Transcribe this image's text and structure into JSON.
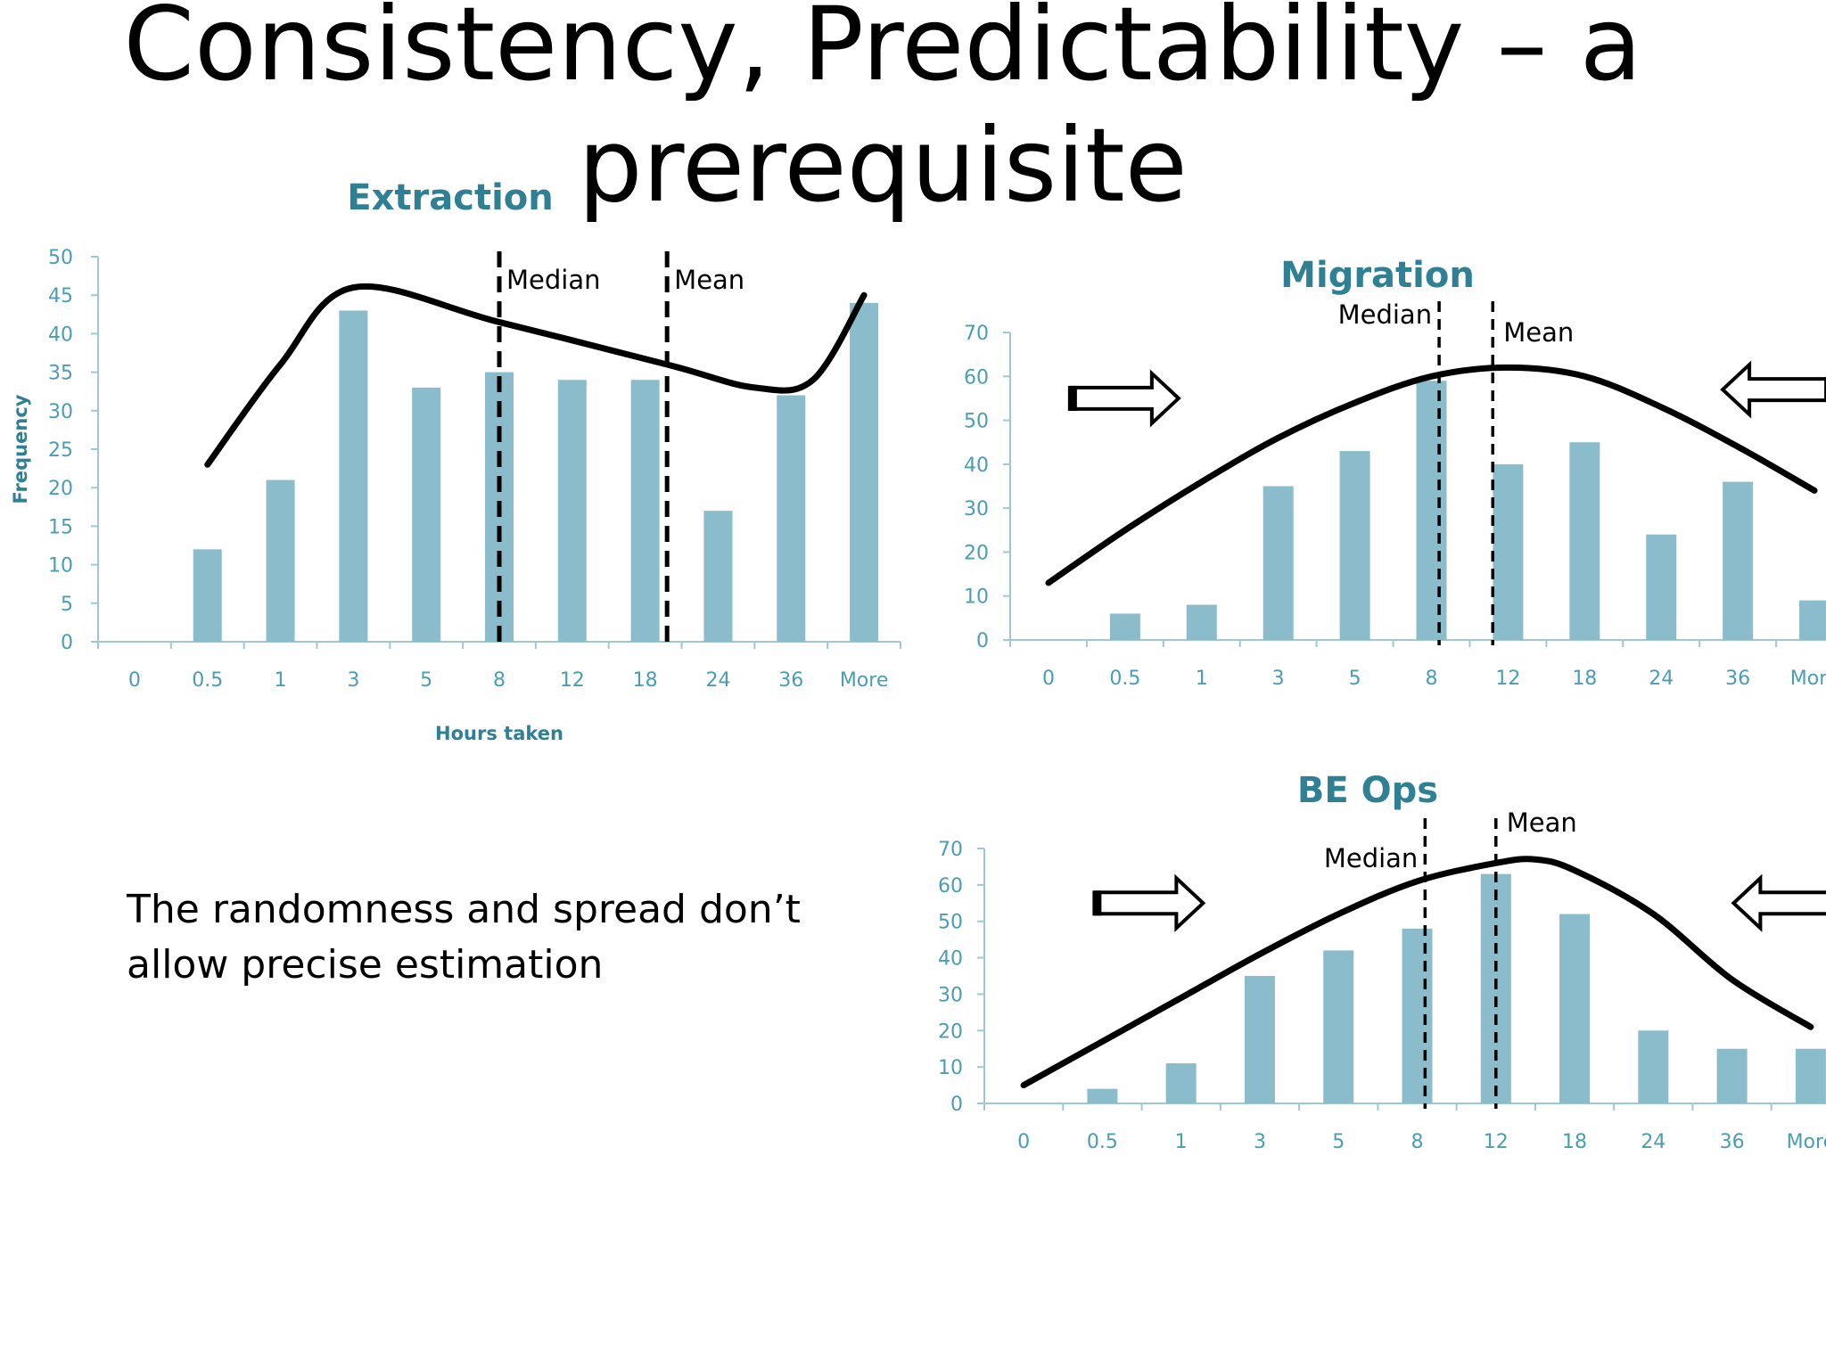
{
  "slide": {
    "title_line1": "Consistency, Predictability – a",
    "title_line2": "prerequisite",
    "body_line1": "The randomness and spread don’t",
    "body_line2": "allow precise estimation"
  },
  "colors": {
    "bar": "#8bbccb",
    "axis": "#9dc8d4",
    "text_accent": "#2f7f95",
    "curve": "#000000"
  },
  "chart_data": [
    {
      "type": "bar",
      "title": "Extraction",
      "xlabel": "Hours taken",
      "ylabel": "Frequency",
      "categories": [
        "0",
        "0.5",
        "1",
        "3",
        "5",
        "8",
        "12",
        "18",
        "24",
        "36",
        "More"
      ],
      "values": [
        0,
        12,
        21,
        43,
        33,
        35,
        34,
        34,
        17,
        32,
        44
      ],
      "ylim": [
        0,
        50
      ],
      "yticks": [
        0,
        5,
        10,
        15,
        20,
        25,
        30,
        35,
        40,
        45,
        50
      ],
      "reference_lines": [
        {
          "label": "Median",
          "at_category_index": 5.0
        },
        {
          "label": "Mean",
          "at_category_index": 7.3
        }
      ],
      "trend_curve": [
        [
          1,
          23
        ],
        [
          2,
          36
        ],
        [
          3,
          46
        ],
        [
          5,
          41.5
        ],
        [
          7.3,
          36
        ],
        [
          8.5,
          33
        ],
        [
          9.3,
          34
        ],
        [
          10,
          45
        ]
      ],
      "arrows": []
    },
    {
      "type": "bar",
      "title": "Migration",
      "xlabel": "",
      "ylabel": "",
      "categories": [
        "0",
        "0.5",
        "1",
        "3",
        "5",
        "8",
        "12",
        "18",
        "24",
        "36",
        "More"
      ],
      "values": [
        0,
        6,
        8,
        35,
        43,
        59,
        40,
        45,
        24,
        36,
        9
      ],
      "ylim": [
        0,
        70
      ],
      "yticks": [
        0,
        10,
        20,
        30,
        40,
        50,
        60,
        70
      ],
      "reference_lines": [
        {
          "label": "Median",
          "at_category_index": 5.1
        },
        {
          "label": "Mean",
          "at_category_index": 5.8
        }
      ],
      "trend_curve": [
        [
          0,
          13
        ],
        [
          1,
          25
        ],
        [
          2,
          36
        ],
        [
          3,
          46
        ],
        [
          4,
          54
        ],
        [
          5,
          60
        ],
        [
          6,
          62
        ],
        [
          7,
          60
        ],
        [
          8,
          53
        ],
        [
          9,
          44
        ],
        [
          10,
          34
        ]
      ],
      "arrows": [
        {
          "direction": "right",
          "at_category_index": 1.0,
          "y": 55
        },
        {
          "direction": "left",
          "at_category_index": 9.5,
          "y": 57
        }
      ]
    },
    {
      "type": "bar",
      "title": "BE Ops",
      "xlabel": "",
      "ylabel": "",
      "categories": [
        "0",
        "0.5",
        "1",
        "3",
        "5",
        "8",
        "12",
        "18",
        "24",
        "36",
        "More"
      ],
      "values": [
        0,
        4,
        11,
        35,
        42,
        48,
        63,
        52,
        20,
        15,
        15
      ],
      "ylim": [
        0,
        70
      ],
      "yticks": [
        0,
        10,
        20,
        30,
        40,
        50,
        60,
        70
      ],
      "reference_lines": [
        {
          "label": "Median",
          "at_category_index": 5.1
        },
        {
          "label": "Mean",
          "at_category_index": 6.0
        }
      ],
      "trend_curve": [
        [
          0,
          5
        ],
        [
          1,
          17
        ],
        [
          2,
          29
        ],
        [
          3,
          41
        ],
        [
          4,
          52
        ],
        [
          5,
          61
        ],
        [
          6,
          66
        ],
        [
          6.5,
          67
        ],
        [
          7,
          64
        ],
        [
          8,
          52
        ],
        [
          9,
          34
        ],
        [
          10,
          21
        ]
      ],
      "arrows": [
        {
          "direction": "right",
          "at_category_index": 1.6,
          "y": 55
        },
        {
          "direction": "left",
          "at_category_index": 9.7,
          "y": 55
        }
      ]
    }
  ]
}
